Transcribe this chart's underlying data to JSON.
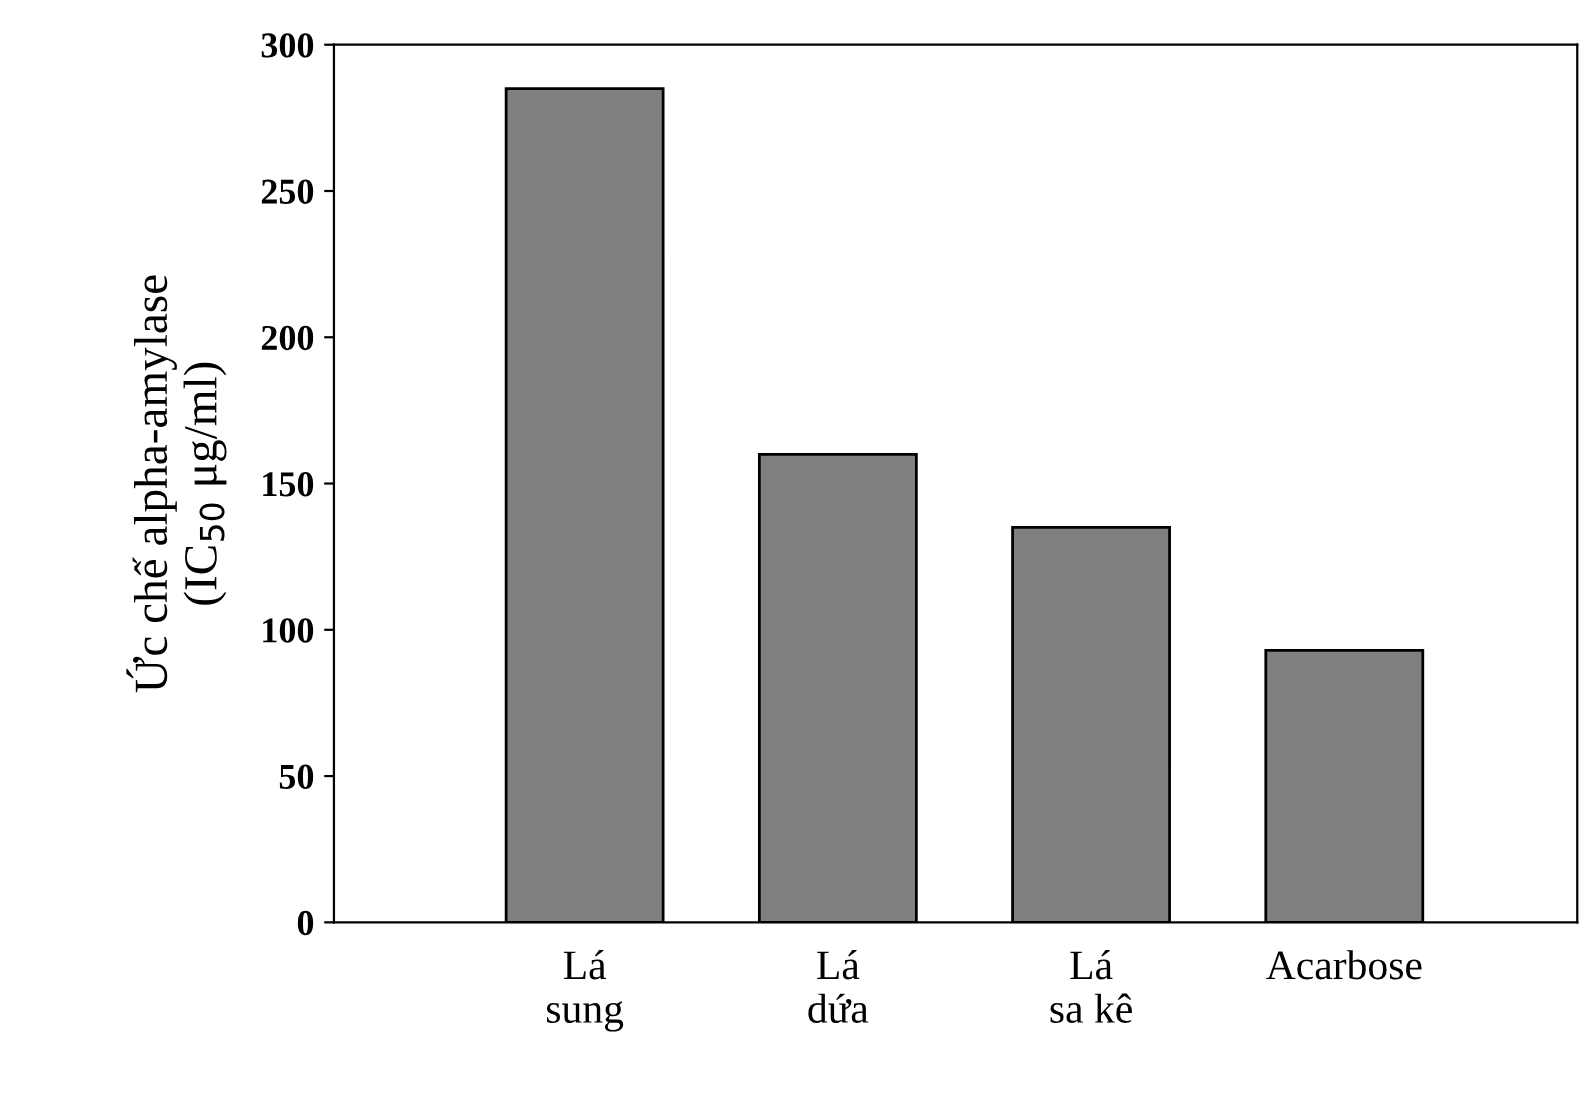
{
  "chart_data": {
    "type": "bar",
    "ylabel": "Ức chế alpha-amylase\n(IC$_{50}$ μg/ml)",
    "categories": [
      "Lá\nsung",
      "Lá\ndứa",
      "Lá\nsa kê",
      "Acarbose"
    ],
    "values": [
      285,
      160,
      135,
      93
    ],
    "color": "#808080",
    "ylim": [
      0,
      300
    ],
    "yticks": [
      0,
      50,
      100,
      150,
      200,
      250,
      300
    ],
    "grid": false
  }
}
